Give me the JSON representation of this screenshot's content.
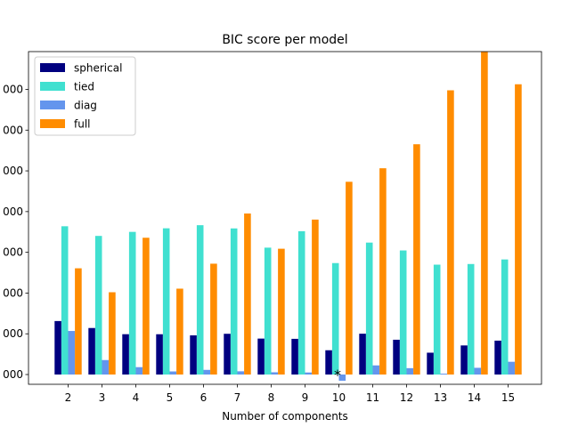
{
  "chart_data": {
    "type": "bar",
    "title": "BIC score per model",
    "xlabel": "Number of components",
    "ylabel": "",
    "categories": [
      "2",
      "3",
      "4",
      "5",
      "6",
      "7",
      "8",
      "9",
      "10",
      "11",
      "12",
      "13",
      "14",
      "15"
    ],
    "series": [
      {
        "name": "spherical",
        "color": "#000080",
        "values": [
          131.3,
          114.2,
          99.0,
          98.9,
          96.2,
          100.0,
          88.2,
          87.6,
          59.6,
          100.2,
          85.4,
          53.6,
          71.4,
          83.2
        ]
      },
      {
        "name": "tied",
        "color": "#40E0D0",
        "values": [
          364.0,
          340.3,
          350.2,
          359.0,
          366.6,
          358.7,
          311.5,
          351.9,
          273.6,
          323.9,
          304.6,
          269.7,
          271.3,
          282.5
        ]
      },
      {
        "name": "diag",
        "color": "#6495ED",
        "values": [
          106.9,
          35.5,
          18.1,
          7.6,
          11.4,
          7.9,
          5.5,
          5.0,
          -15.2,
          22.4,
          15.6,
          2.1,
          16.5,
          31.3
        ]
      },
      {
        "name": "full",
        "color": "#FF8C00",
        "values": [
          260.8,
          202.0,
          335.8,
          210.8,
          272.1,
          395.3,
          308.8,
          380.4,
          473.2,
          506.4,
          565.3,
          697.8,
          792.8,
          712.6
        ]
      }
    ],
    "ylim": [
      -24,
      792.8
    ],
    "y_tick_values": [
      0,
      100,
      200,
      300,
      400,
      500,
      600,
      700
    ],
    "y_tick_labels": [
      "000",
      "000",
      "000",
      "000",
      "000",
      "000",
      "000",
      "000"
    ],
    "annotation": {
      "text": "*",
      "category": "10",
      "y": -2
    },
    "grid": false,
    "legend_position": "top-left"
  }
}
